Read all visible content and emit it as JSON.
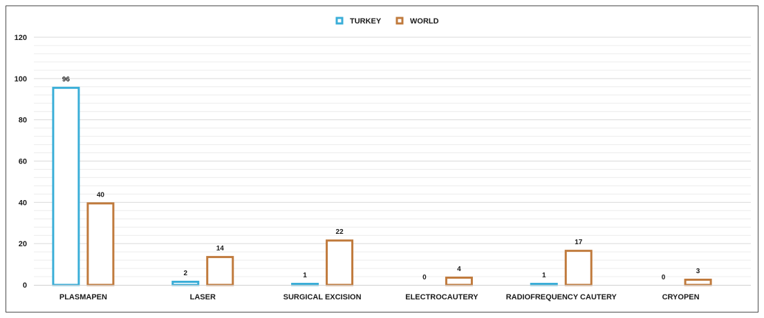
{
  "chart_data": {
    "type": "bar",
    "categories": [
      "PLASMAPEN",
      "LASER",
      "SURGICAL EXCISION",
      "ELECTROCAUTERY",
      "RADIOFREQUENCY CAUTERY",
      "CRYOPEN"
    ],
    "series": [
      {
        "name": "TURKEY",
        "values": [
          96,
          2,
          1,
          0,
          1,
          0
        ],
        "color": "#3aaed8"
      },
      {
        "name": "WORLD",
        "values": [
          40,
          14,
          22,
          4,
          17,
          3
        ],
        "color": "#c07a3c"
      }
    ],
    "title": "",
    "xlabel": "",
    "ylabel": "",
    "ylim": [
      0,
      120
    ],
    "yticks": [
      0,
      20,
      40,
      60,
      80,
      100,
      120
    ],
    "grid": true,
    "legend": "top-center"
  }
}
